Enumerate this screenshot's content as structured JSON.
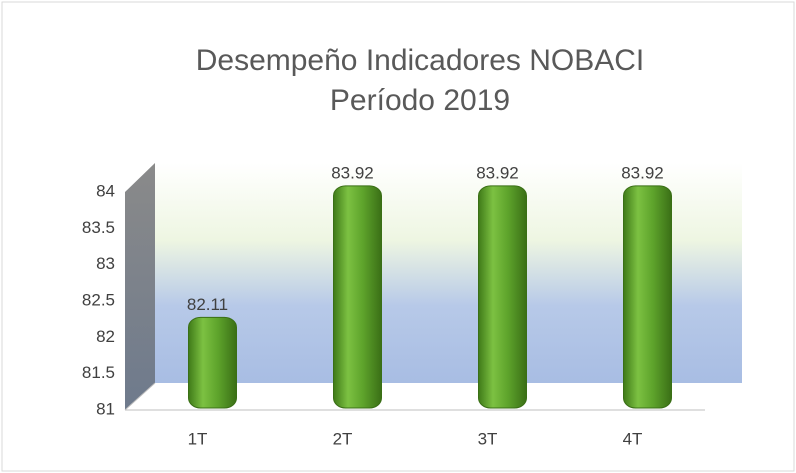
{
  "chart_data": {
    "type": "bar",
    "title": [
      "Desempeño Indicadores  NOBACI",
      "Período 2019"
    ],
    "categories": [
      "1T",
      "2T",
      "3T",
      "4T"
    ],
    "values": [
      82.11,
      83.92,
      83.92,
      83.92
    ],
    "color": "#5a9e2a",
    "ylim": [
      81,
      84
    ],
    "yticks": [
      81,
      81.5,
      82,
      82.5,
      83,
      83.5,
      84
    ],
    "grid": false
  }
}
